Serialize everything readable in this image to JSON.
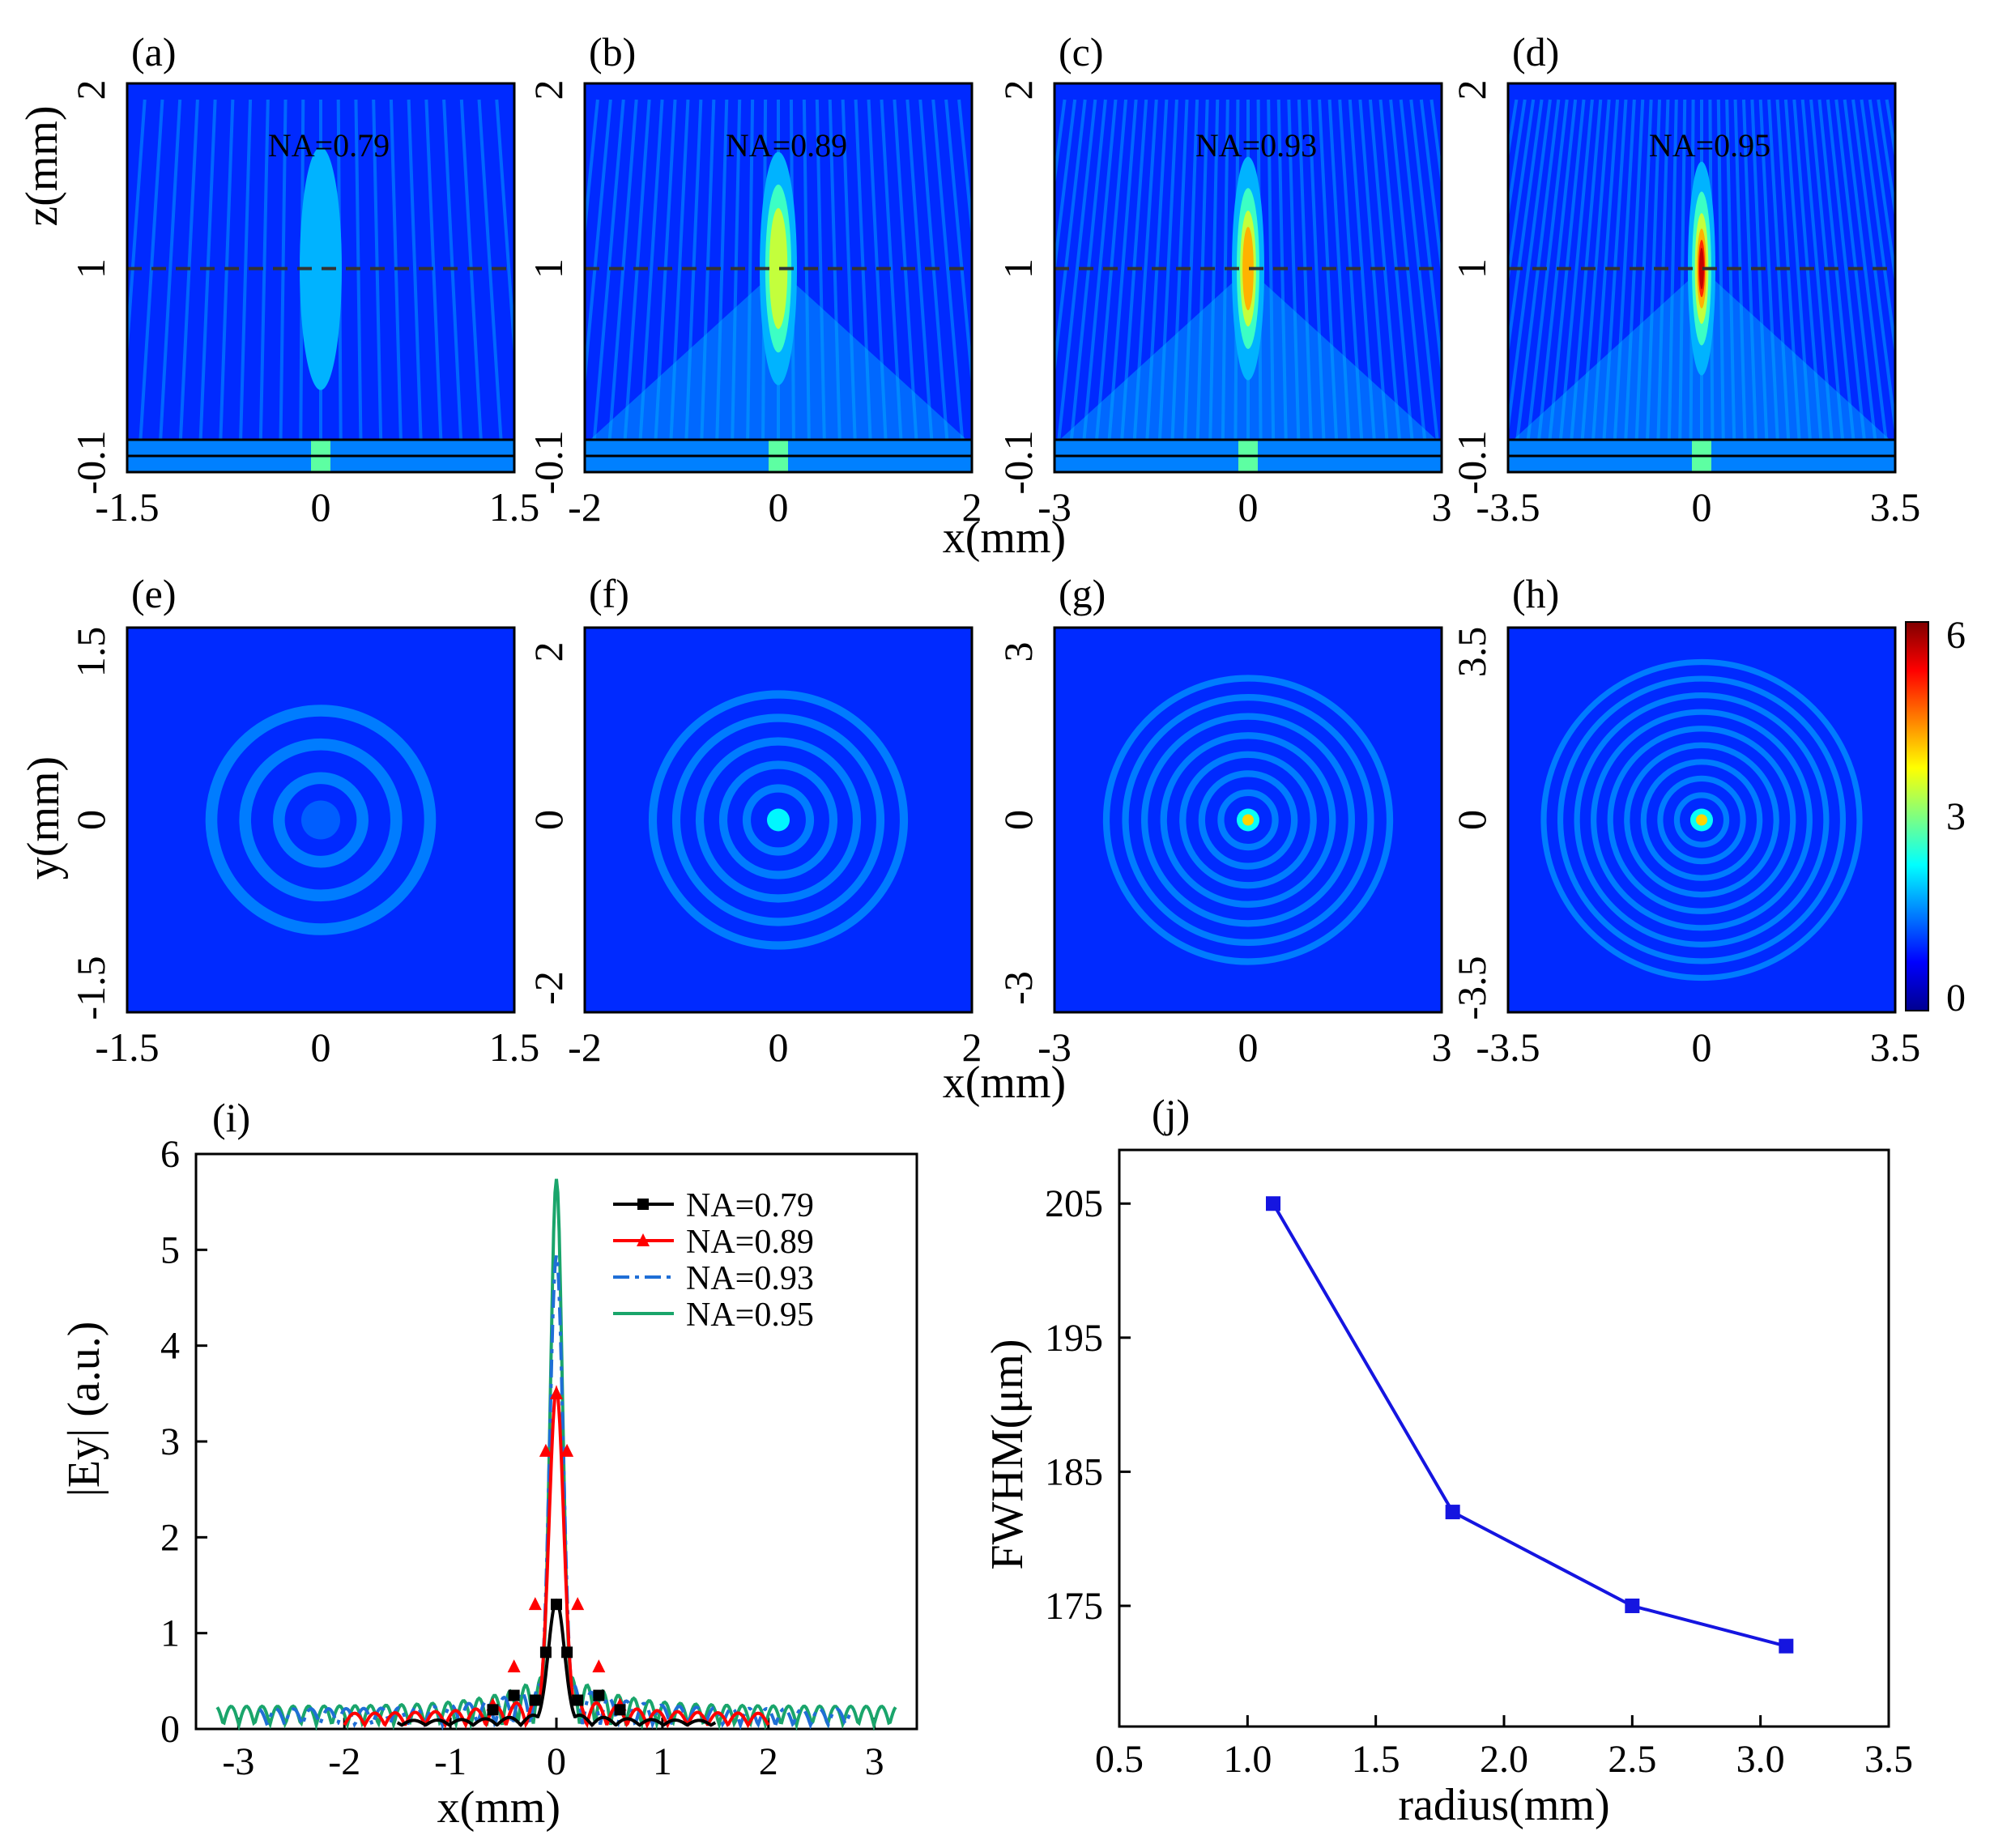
{
  "figure": {
    "colorbar": {
      "ticks": [
        "6",
        "3",
        "0"
      ],
      "min": 0,
      "max": 6
    },
    "row1": {
      "xlabel": "x(mm)",
      "ylabel": "z(mm)"
    },
    "row2": {
      "xlabel": "x(mm)",
      "ylabel": "y(mm)"
    }
  },
  "chart_data": [
    {
      "panel": "(a)",
      "type": "heatmap",
      "view": "xz",
      "annotation": "NA=0.79",
      "xlim": [
        -1.5,
        1.5
      ],
      "x_ticks": [
        "-1.5",
        "0",
        "1.5"
      ],
      "y_ticks": [
        "2",
        "1",
        "-0.1"
      ],
      "focus_z": 1.0,
      "peak_level": 1.3
    },
    {
      "panel": "(b)",
      "type": "heatmap",
      "view": "xz",
      "annotation": "NA=0.89",
      "xlim": [
        -2,
        2
      ],
      "x_ticks": [
        "-2",
        "0",
        "2"
      ],
      "y_ticks": [
        "2",
        "1",
        "-0.1"
      ],
      "focus_z": 1.0,
      "peak_level": 3.5
    },
    {
      "panel": "(c)",
      "type": "heatmap",
      "view": "xz",
      "annotation": "NA=0.93",
      "xlim": [
        -3,
        3
      ],
      "x_ticks": [
        "-3",
        "0",
        "3"
      ],
      "y_ticks": [
        "2",
        "1",
        "-0.1"
      ],
      "focus_z": 1.0,
      "peak_level": 4.9
    },
    {
      "panel": "(d)",
      "type": "heatmap",
      "view": "xz",
      "annotation": "NA=0.95",
      "xlim": [
        -3.5,
        3.5
      ],
      "x_ticks": [
        "-3.5",
        "0",
        "3.5"
      ],
      "y_ticks": [
        "2",
        "1",
        "-0.1"
      ],
      "focus_z": 1.0,
      "peak_level": 5.7
    },
    {
      "panel": "(e)",
      "type": "heatmap",
      "view": "xy",
      "xlim": [
        -1.5,
        1.5
      ],
      "x_ticks": [
        "-1.5",
        "0",
        "1.5"
      ],
      "y_ticks": [
        "1.5",
        "0",
        "-1.5"
      ],
      "peak_level": 1.3
    },
    {
      "panel": "(f)",
      "type": "heatmap",
      "view": "xy",
      "xlim": [
        -2,
        2
      ],
      "x_ticks": [
        "-2",
        "0",
        "2"
      ],
      "y_ticks": [
        "2",
        "0",
        "-2"
      ],
      "peak_level": 2.2
    },
    {
      "panel": "(g)",
      "type": "heatmap",
      "view": "xy",
      "xlim": [
        -3,
        3
      ],
      "x_ticks": [
        "-3",
        "0",
        "3"
      ],
      "y_ticks": [
        "3",
        "0",
        "-3"
      ],
      "peak_level": 4.0
    },
    {
      "panel": "(h)",
      "type": "heatmap",
      "view": "xy",
      "xlim": [
        -3.5,
        3.5
      ],
      "x_ticks": [
        "-3.5",
        "0",
        "3.5"
      ],
      "y_ticks": [
        "3.5",
        "0",
        "-3.5"
      ],
      "peak_level": 4.0
    },
    {
      "panel": "(i)",
      "type": "line",
      "xlabel": "x(mm)",
      "ylabel": "|Ey| (a.u.)",
      "xlim": [
        -3.4,
        3.4
      ],
      "ylim": [
        0,
        6
      ],
      "x_ticks": [
        "-3",
        "-2",
        "-1",
        "0",
        "1",
        "2",
        "3"
      ],
      "y_ticks": [
        "0",
        "1",
        "2",
        "3",
        "4",
        "5",
        "6"
      ],
      "series": [
        {
          "name": "NA=0.79",
          "color": "#000000",
          "style": "solid",
          "marker": "square",
          "peak": 1.3,
          "extent": 1.5,
          "points": [
            [
              -0.6,
              0.2
            ],
            [
              -0.4,
              0.35
            ],
            [
              -0.2,
              0.3
            ],
            [
              -0.1,
              0.8
            ],
            [
              0,
              1.3
            ],
            [
              0.1,
              0.8
            ],
            [
              0.2,
              0.3
            ],
            [
              0.4,
              0.35
            ],
            [
              0.6,
              0.2
            ]
          ]
        },
        {
          "name": "NA=0.89",
          "color": "#ff0000",
          "style": "solid",
          "marker": "triangle",
          "peak": 3.5,
          "extent": 2.0,
          "points": [
            [
              -0.6,
              0.25
            ],
            [
              -0.4,
              0.65
            ],
            [
              -0.2,
              1.3
            ],
            [
              -0.1,
              2.9
            ],
            [
              0,
              3.5
            ],
            [
              0.1,
              2.9
            ],
            [
              0.2,
              1.3
            ],
            [
              0.4,
              0.65
            ],
            [
              0.6,
              0.25
            ]
          ]
        },
        {
          "name": "NA=0.93",
          "color": "#1f6fd6",
          "style": "dashdot",
          "marker": "none",
          "peak": 4.9,
          "extent": 2.8,
          "points": []
        },
        {
          "name": "NA=0.95",
          "color": "#1aa56b",
          "style": "solid",
          "marker": "none",
          "peak": 5.7,
          "extent": 3.2,
          "points": []
        }
      ]
    },
    {
      "panel": "(j)",
      "type": "line",
      "xlabel": "radius(mm)",
      "ylabel": "FWHM(μm)",
      "xlim": [
        0.5,
        3.5
      ],
      "ylim": [
        166,
        209
      ],
      "x_ticks": [
        "0.5",
        "1.0",
        "1.5",
        "2.0",
        "2.5",
        "3.0",
        "3.5"
      ],
      "y_ticks": [
        "205",
        "195",
        "185",
        "175"
      ],
      "series": [
        {
          "name": "FWHM",
          "color": "#1515e0",
          "x": [
            1.1,
            1.8,
            2.5,
            3.1
          ],
          "y": [
            205,
            182,
            175,
            172
          ]
        }
      ]
    }
  ]
}
